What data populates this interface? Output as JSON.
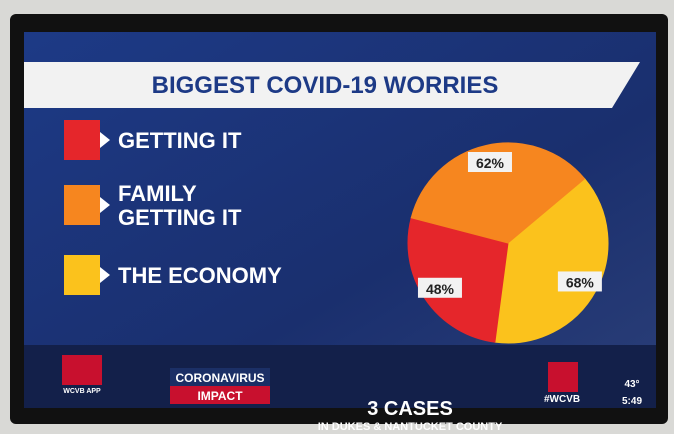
{
  "chart_data": {
    "type": "pie",
    "title": "BIGGEST COVID-19 WORRIES",
    "categories": [
      "GETTING IT",
      "FAMILY GETTING IT",
      "THE ECONOMY"
    ],
    "values": [
      48,
      62,
      68
    ],
    "value_labels": [
      "48%",
      "62%",
      "68%"
    ],
    "colors": [
      "#e5262b",
      "#f6861f",
      "#fbc21c"
    ]
  },
  "ticker": {
    "app": "WCVB APP",
    "segment_top": "CORONAVIRUS",
    "segment_bottom": "IMPACT",
    "headline": "3 CASES",
    "subline": "IN DUKES & NANTUCKET COUNTY",
    "hashtag": "#WCVB",
    "temperature": "43°",
    "time": "5:49"
  }
}
